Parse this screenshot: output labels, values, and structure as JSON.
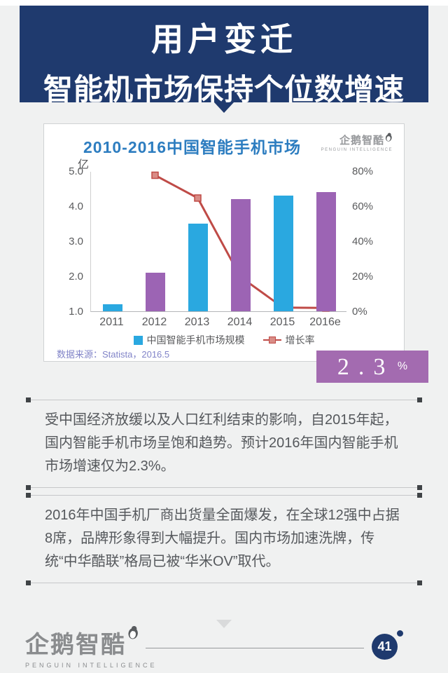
{
  "header": {
    "title_line1": "用户变迁",
    "title_line2": "智能机市场保持个位数增速"
  },
  "chart_card": {
    "title": "2010-2016中国智能手机市场",
    "brand": {
      "name": "企鹅智酷",
      "subtitle": "PENGUIN INTELLIGENCE"
    },
    "source": "数据来源：Statista，2016.5",
    "badge": {
      "value": "2.3",
      "unit": "%"
    }
  },
  "chart_data": {
    "type": "bar",
    "title": "2010-2016中国智能手机市场",
    "categories": [
      "2011",
      "2012",
      "2013",
      "2014",
      "2015",
      "2016e"
    ],
    "series": [
      {
        "name": "中国智能手机市场规模",
        "type": "bar",
        "axis": "left",
        "unit": "亿",
        "values": [
          1.2,
          2.1,
          3.5,
          4.2,
          4.3,
          4.4
        ],
        "colors": [
          "#2aa8e0",
          "#9c64b4",
          "#2aa8e0",
          "#9c64b4",
          "#2aa8e0",
          "#9c64b4"
        ]
      },
      {
        "name": "增长率",
        "type": "line",
        "axis": "right",
        "unit": "%",
        "values": [
          null,
          78,
          65,
          20,
          2.5,
          2.3
        ],
        "color": "#bf4b47",
        "marker_fill": "#d98c86"
      }
    ],
    "left_axis": {
      "label": "亿",
      "min": 1.0,
      "max": 5.0,
      "ticks": [
        "5.0",
        "4.0",
        "3.0",
        "2.0",
        "1.0"
      ]
    },
    "right_axis": {
      "min": 0,
      "max": 80,
      "ticks": [
        "80%",
        "60%",
        "40%",
        "20%",
        "0%"
      ]
    },
    "legend_position": "bottom",
    "grid": false
  },
  "paragraphs": [
    "受中国经济放缓以及人口红利结束的影响，自2015年起，国内智能手机市场呈饱和趋势。预计2016年国内智能手机市场增速仅为2.3%。",
    "2016年中国手机厂商出货量全面爆发，在全球12强中占据8席，品牌形象得到大幅提升。国内市场加速洗牌，传统“中华酷联”格局已被“华米OV”取代。"
  ],
  "footer": {
    "brand": {
      "name": "企鹅智酷",
      "subtitle": "PENGUIN INTELLIGENCE"
    },
    "page_number": "41"
  },
  "colors": {
    "header_navy": "#1f3a6e",
    "title_blue": "#2d7dc0",
    "bar_blue": "#2aa8e0",
    "bar_purple": "#9c64b4",
    "line_red": "#bf4b47",
    "badge_purple": "#a36bb0",
    "source_text": "#8184c8",
    "body_text": "#55585c",
    "page_background": "#f0f1f1"
  }
}
